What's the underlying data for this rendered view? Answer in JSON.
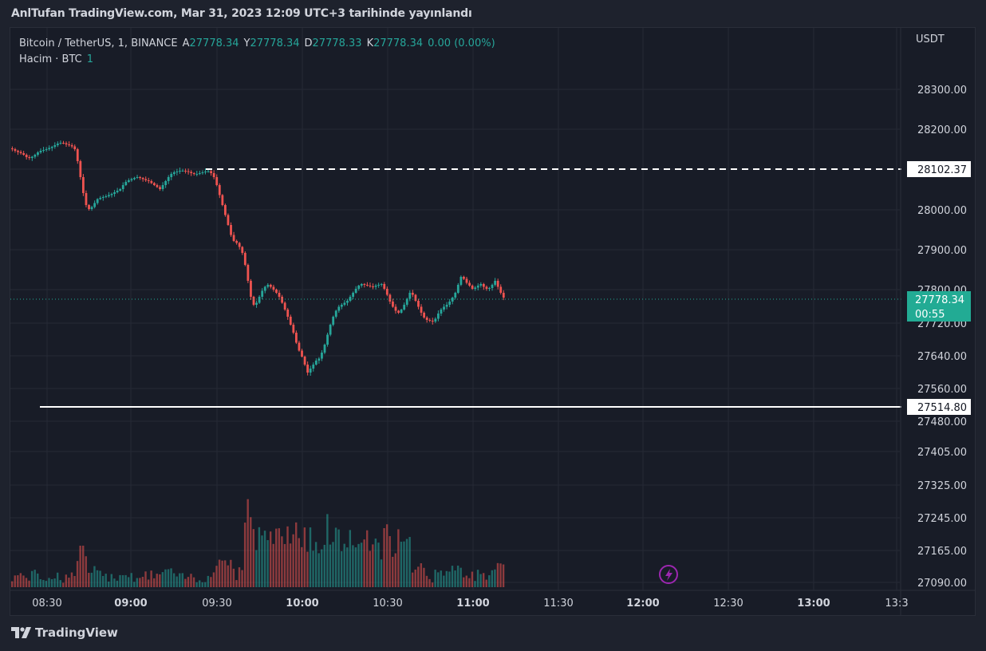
{
  "header": {
    "published_text": "AnlTufan TradingView.com, Mar 31, 2023 12:09 UTC+3 tarihinde yayınlandı"
  },
  "legend": {
    "symbol": "Bitcoin / TetherUS, 1, BINANCE",
    "open_label": "A",
    "open": "27778.34",
    "high_label": "Y",
    "high": "27778.34",
    "low_label": "D",
    "low": "27778.33",
    "close_label": "K",
    "close": "27778.34",
    "change": "0.00 (0.00%)",
    "volume_label": "Hacim · BTC",
    "volume_value": "1"
  },
  "axis": {
    "currency": "USDT",
    "price_labels": [
      "28300.00",
      "28200.00",
      "28000.00",
      "27900.00",
      "27800.00",
      "27720.00",
      "27640.00",
      "27560.00",
      "27480.00",
      "27405.00",
      "27325.00",
      "27245.00",
      "27165.00",
      "27090.00"
    ],
    "time_labels": [
      {
        "t": "08:30",
        "bold": false
      },
      {
        "t": "09:00",
        "bold": true
      },
      {
        "t": "09:30",
        "bold": false
      },
      {
        "t": "10:00",
        "bold": true
      },
      {
        "t": "10:30",
        "bold": false
      },
      {
        "t": "11:00",
        "bold": true
      },
      {
        "t": "11:30",
        "bold": false
      },
      {
        "t": "12:00",
        "bold": true
      },
      {
        "t": "12:30",
        "bold": false
      },
      {
        "t": "13:00",
        "bold": true
      },
      {
        "t": "13:3",
        "bold": false
      }
    ]
  },
  "levels": {
    "resistance": "28102.37",
    "support": "27514.80",
    "last_price": "27778.34",
    "countdown": "00:55"
  },
  "colors": {
    "up": "#26a69a",
    "down": "#ef5350",
    "bg": "#181c27",
    "grid": "#262a35",
    "accent": "#22ab94",
    "alert": "#9c27b0"
  },
  "chart_data": {
    "type": "candlestick",
    "symbol": "BTCUSDT",
    "interval": "1m",
    "time_start": "08:18",
    "price_range": [
      27480,
      28360
    ],
    "close_series": [
      28150,
      28146,
      28143,
      28140,
      28136,
      28130,
      28128,
      28131,
      28136,
      28142,
      28146,
      28148,
      28150,
      28153,
      28156,
      28160,
      28164,
      28166,
      28165,
      28162,
      28160,
      28157,
      28150,
      28120,
      28080,
      28040,
      28010,
      28000,
      28005,
      28015,
      28025,
      28028,
      28030,
      28032,
      28035,
      28038,
      28042,
      28046,
      28050,
      28060,
      28068,
      28072,
      28075,
      28078,
      28080,
      28078,
      28075,
      28072,
      28070,
      28065,
      28060,
      28055,
      28050,
      28060,
      28070,
      28080,
      28088,
      28092,
      28094,
      28096,
      28096,
      28095,
      28093,
      28090,
      28088,
      28088,
      28090,
      28092,
      28094,
      28095,
      28090,
      28080,
      28060,
      28035,
      28010,
      27985,
      27960,
      27935,
      27920,
      27915,
      27905,
      27890,
      27860,
      27820,
      27780,
      27760,
      27765,
      27780,
      27795,
      27805,
      27810,
      27805,
      27798,
      27790,
      27780,
      27765,
      27748,
      27730,
      27710,
      27690,
      27665,
      27645,
      27630,
      27610,
      27590,
      27600,
      27610,
      27620,
      27625,
      27640,
      27660,
      27685,
      27710,
      27730,
      27745,
      27755,
      27760,
      27765,
      27770,
      27780,
      27790,
      27800,
      27808,
      27812,
      27810,
      27808,
      27806,
      27805,
      27808,
      27810,
      27812,
      27800,
      27785,
      27768,
      27755,
      27745,
      27740,
      27748,
      27760,
      27775,
      27790,
      27785,
      27770,
      27755,
      27740,
      27728,
      27722,
      27720,
      27718,
      27725,
      27738,
      27748,
      27755,
      27760,
      27768,
      27778,
      27790,
      27810,
      27830,
      27825,
      27815,
      27808,
      27800,
      27803,
      27808,
      27812,
      27805,
      27800,
      27802,
      27810,
      27820,
      27805,
      27790,
      27778
    ],
    "volume_range_btc": [
      0,
      480
    ]
  }
}
